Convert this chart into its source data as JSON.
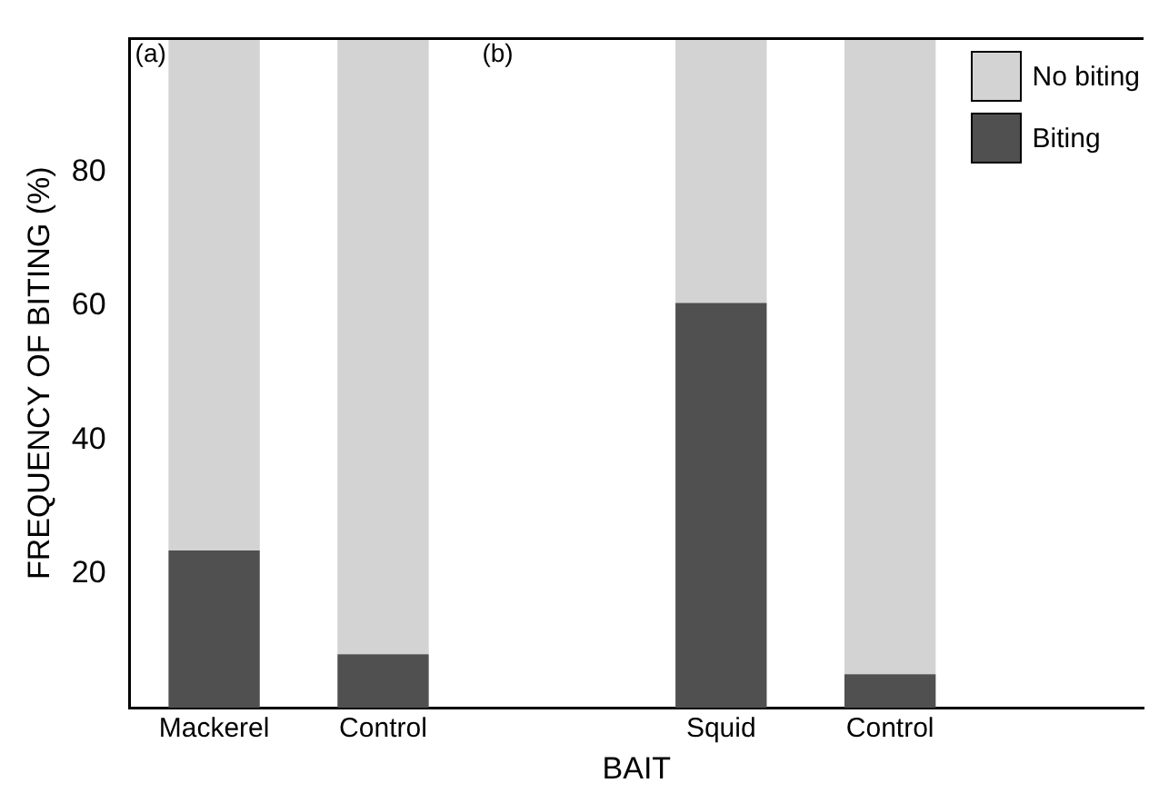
{
  "chart_data": {
    "type": "bar",
    "stacked": true,
    "xlabel": "BAIT",
    "ylabel": "FREQUENCY OF BITING (%)",
    "categories": [
      "Mackerel",
      "Control",
      null,
      "Squid",
      "Control",
      null
    ],
    "series": [
      {
        "name": "Biting",
        "color": "#505050",
        "values": [
          23.5,
          8,
          null,
          60.5,
          5,
          null
        ]
      },
      {
        "name": "No biting",
        "color": "#d3d3d3",
        "values": [
          76.5,
          92,
          null,
          39.5,
          95,
          null
        ]
      }
    ],
    "ylim": [
      0,
      100
    ],
    "yticks": [
      20,
      40,
      60,
      80
    ],
    "grid": false,
    "legend": "top right",
    "annotations": [
      "(a)",
      "(b)"
    ]
  }
}
